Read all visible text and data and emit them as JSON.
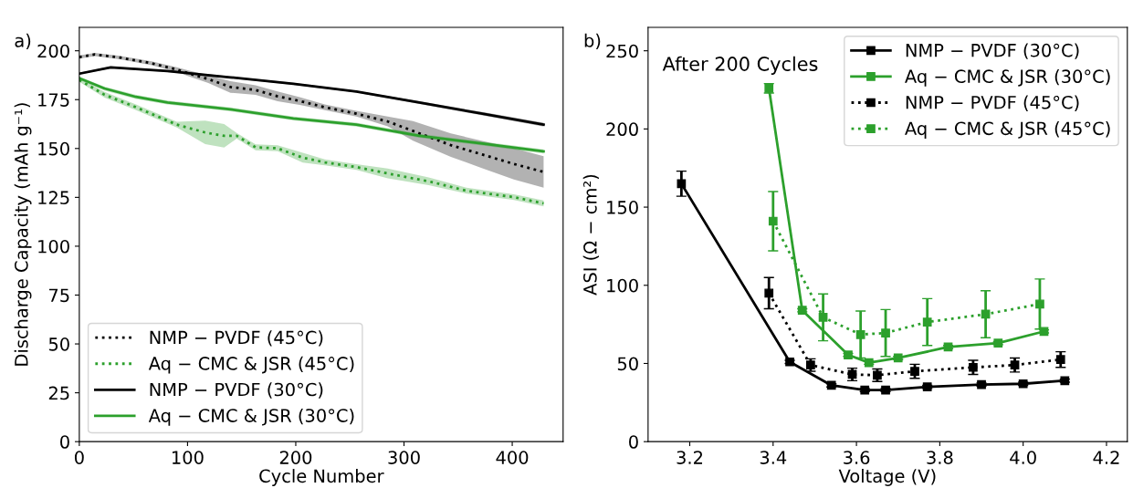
{
  "chart_data": [
    {
      "type": "line",
      "title": "a)",
      "xlabel": "Cycle Number",
      "ylabel": "Discharge Capacity (mAh g⁻¹)",
      "xlim": [
        0,
        447
      ],
      "xticks": [
        0,
        100,
        200,
        300,
        400
      ],
      "ylim": [
        0,
        212
      ],
      "yticks": [
        0,
        25,
        50,
        75,
        100,
        125,
        150,
        175,
        200
      ],
      "grid": false,
      "legend": "bottom left",
      "marker": "none",
      "series": [
        {
          "name": "NMP − PVDF (45°C)",
          "color": "#000000",
          "line_style": "dotted",
          "x": [
            0,
            14.4,
            37.7,
            66.8,
            90.1,
            101.8,
            119.2,
            139.6,
            162.9,
            183.2,
            203.6,
            226.9,
            256,
            285,
            308.3,
            343.3,
            372.4,
            401.5,
            429
          ],
          "values": [
            196.8,
            198.1,
            196.5,
            193.6,
            190.4,
            188.3,
            185.5,
            181.5,
            179.9,
            176.7,
            174.3,
            171.1,
            167.8,
            163.8,
            159,
            151.7,
            146.9,
            142.1,
            138
          ],
          "lower": [
            196,
            197.3,
            195.6,
            192.6,
            189.2,
            186.8,
            183.5,
            178.5,
            177.4,
            174.2,
            172.3,
            169.6,
            166.3,
            161.3,
            154,
            145.7,
            139.9,
            134.1,
            130
          ],
          "upper": [
            197.6,
            198.9,
            197.4,
            194.6,
            191.6,
            189.8,
            187.5,
            184.5,
            182.4,
            179.2,
            176.3,
            172.6,
            169.3,
            166.3,
            164,
            157.7,
            153.9,
            150.1,
            146
          ]
        },
        {
          "name": "Aq − CMC & JSR (45°C)",
          "color": "#2ca02c",
          "line_style": "dotted",
          "x": [
            0,
            23.3,
            52.4,
            90.1,
            116.3,
            133.8,
            145.4,
            162.9,
            183.2,
            206.5,
            226.9,
            256,
            285,
            322.8,
            357.7,
            401.5,
            429
          ],
          "values": [
            185.1,
            177.5,
            171.1,
            162.2,
            158.2,
            156.5,
            156.5,
            150.6,
            150.1,
            145.3,
            142.9,
            140.5,
            137.2,
            133.2,
            128.4,
            125.1,
            121.9
          ],
          "lower": [
            184.1,
            176,
            169.6,
            160.7,
            152.2,
            150.5,
            155,
            149.1,
            148.6,
            142.8,
            141.4,
            139,
            134.7,
            131.2,
            126.9,
            123.6,
            120.4
          ],
          "upper": [
            186.1,
            179,
            172.6,
            163.7,
            164.2,
            162.5,
            158,
            152.1,
            151.6,
            147.8,
            144.4,
            142,
            139.7,
            135.2,
            129.9,
            126.6,
            123.4
          ]
        },
        {
          "name": "NMP − PVDF (30°C)",
          "color": "#000000",
          "line_style": "solid",
          "x": [
            0,
            29,
            81.3,
            139.6,
            197.8,
            256,
            314.2,
            372.4,
            429
          ],
          "values": [
            188.3,
            191.5,
            189.6,
            186.4,
            183.1,
            179.1,
            173.5,
            167.8,
            162.2
          ],
          "lower": [
            187.8,
            191,
            189.1,
            185.9,
            182.6,
            178.6,
            172.8,
            166.9,
            161.2
          ],
          "upper": [
            188.8,
            192,
            190.1,
            186.9,
            183.6,
            179.6,
            174.2,
            168.7,
            163.2
          ]
        },
        {
          "name": "Aq − CMC & JSR (30°C)",
          "color": "#2ca02c",
          "line_style": "solid",
          "x": [
            0,
            23.3,
            52.4,
            81.5,
            139.6,
            197.8,
            256,
            314.2,
            372.4,
            429
          ],
          "values": [
            186,
            180.7,
            176.4,
            173.5,
            170,
            165.4,
            162.2,
            156.5,
            152.5,
            148.5
          ],
          "lower": [
            185.2,
            179.7,
            175.4,
            172.5,
            169,
            164.4,
            161.2,
            155.5,
            151.5,
            147.5
          ],
          "upper": [
            186.8,
            181.7,
            177.4,
            174.5,
            171,
            166.4,
            163.2,
            157.5,
            153.5,
            149.5
          ]
        }
      ]
    },
    {
      "type": "line",
      "title": "b)",
      "xlabel": "Voltage (V)",
      "ylabel": "ASI (Ω − cm²)",
      "xlim": [
        3.1,
        4.25
      ],
      "xticks": [
        {
          "value": 3.2,
          "label": "3.2"
        },
        {
          "value": 3.4,
          "label": "3.4"
        },
        {
          "value": 3.6,
          "label": "3.6"
        },
        {
          "value": 3.8,
          "label": "3.8"
        },
        {
          "value": 4.0,
          "label": "4.0"
        },
        {
          "value": 4.2,
          "label": "4.2"
        }
      ],
      "ylim": [
        0,
        265
      ],
      "yticks": [
        0,
        50,
        100,
        150,
        200,
        250
      ],
      "grid": false,
      "legend": "top right",
      "marker": "square",
      "annotations": [
        {
          "text": "After 200 Cycles"
        }
      ],
      "series": [
        {
          "name": "NMP − PVDF (30°C)",
          "color": "#000000",
          "line_style": "solid",
          "x": [
            3.18,
            3.44,
            3.54,
            3.62,
            3.67,
            3.77,
            3.9,
            4.0,
            4.1
          ],
          "values": [
            165,
            51,
            36,
            33,
            33,
            35,
            36.5,
            37,
            39
          ],
          "errors": [
            8,
            1,
            1,
            1,
            1,
            1,
            1,
            1,
            1
          ]
        },
        {
          "name": "Aq − CMC & JSR (30°C)",
          "color": "#2ca02c",
          "line_style": "solid",
          "x": [
            3.39,
            3.47,
            3.58,
            3.63,
            3.7,
            3.82,
            3.94,
            4.05
          ],
          "values": [
            226,
            84,
            55.5,
            50.5,
            53.5,
            60.5,
            63,
            70.5
          ],
          "errors": [
            3,
            1,
            1,
            1,
            1,
            1,
            1,
            1
          ]
        },
        {
          "name": "NMP − PVDF (45°C)",
          "color": "#000000",
          "line_style": "dotted",
          "x": [
            3.39,
            3.49,
            3.59,
            3.65,
            3.74,
            3.88,
            3.98,
            4.09
          ],
          "values": [
            95,
            49,
            43,
            42.5,
            45,
            47.5,
            49,
            52.5
          ],
          "errors": [
            10,
            4,
            4,
            4,
            4.5,
            4.5,
            4.5,
            5
          ]
        },
        {
          "name": "Aq − CMC & JSR (45°C)",
          "color": "#2ca02c",
          "line_style": "dotted",
          "x": [
            3.4,
            3.52,
            3.61,
            3.67,
            3.77,
            3.91,
            4.04
          ],
          "values": [
            141,
            79.5,
            68.5,
            69.5,
            76.5,
            81.5,
            88
          ],
          "errors": [
            19,
            15,
            15,
            15,
            15,
            15,
            16
          ]
        }
      ]
    }
  ]
}
